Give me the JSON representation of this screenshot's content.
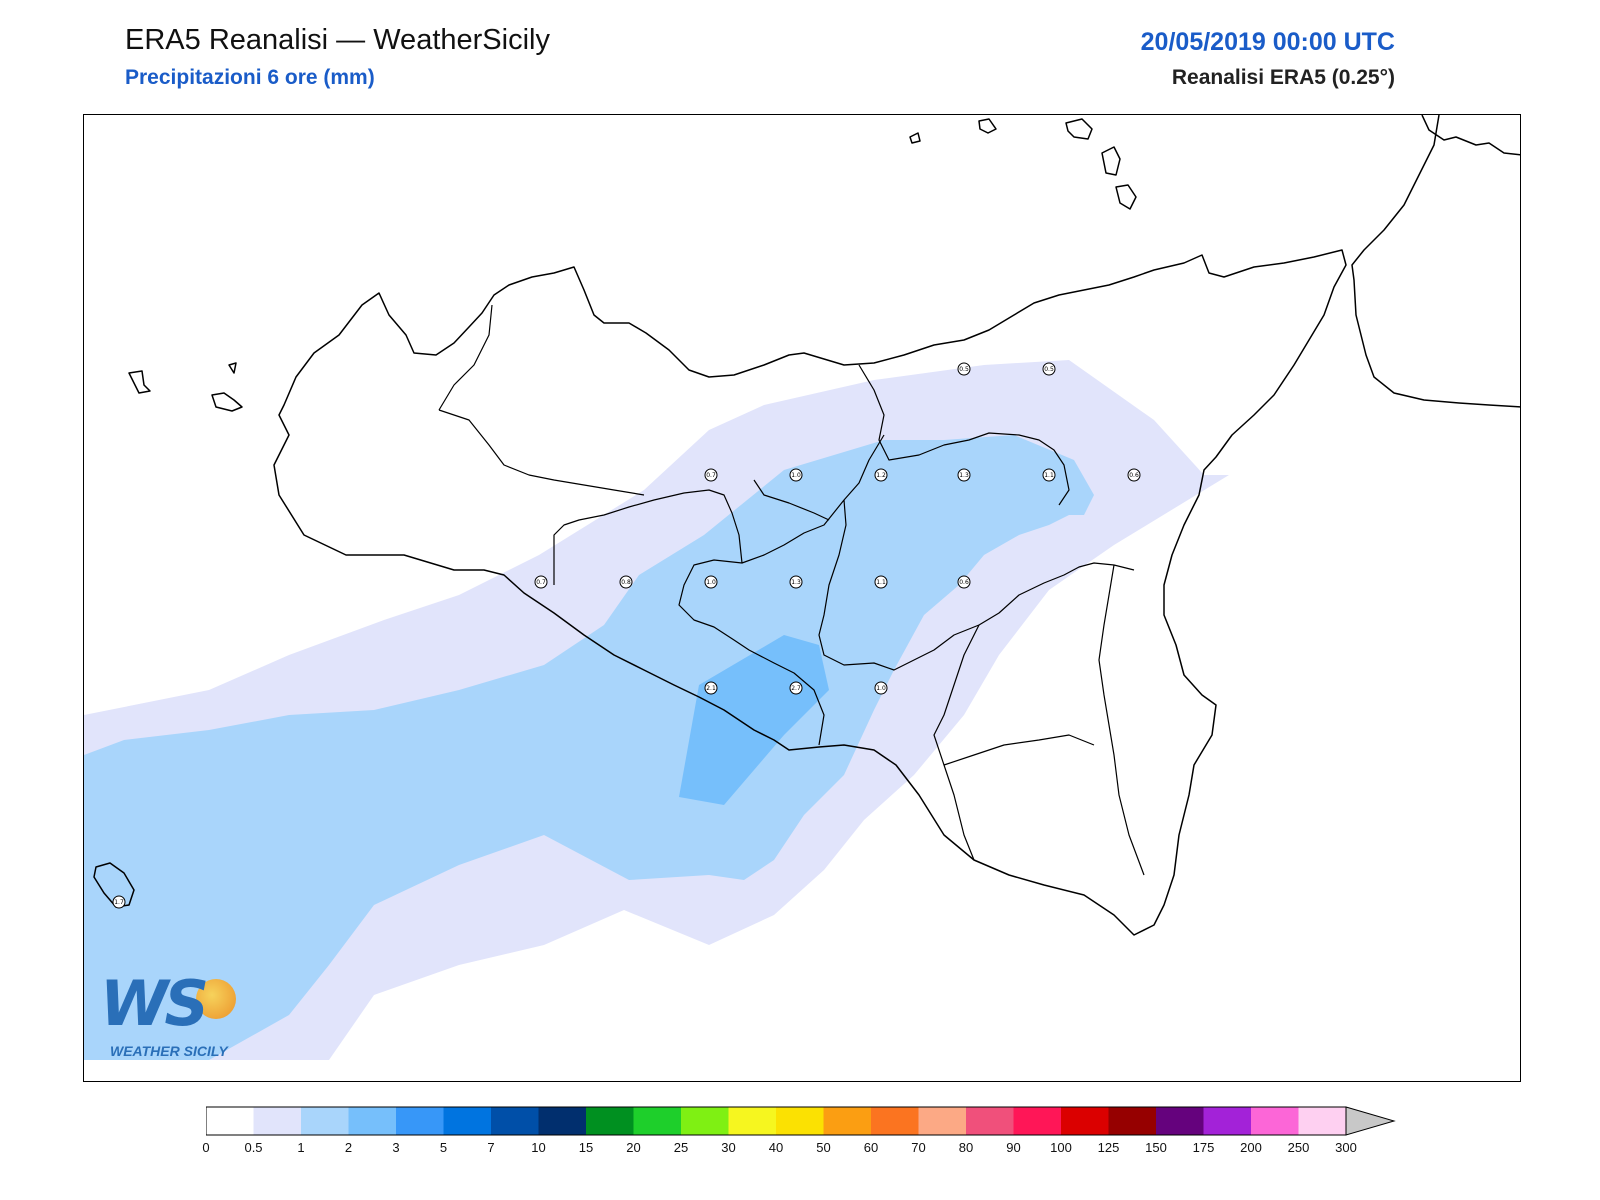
{
  "header": {
    "title": "ERA5 Reanalisi — WeatherSicily",
    "subtitle": "Precipitazioni 6 ore (mm)",
    "datetime": "20/05/2019 00:00 UTC",
    "source": "Reanalisi ERA5 (0.25°)"
  },
  "logo": {
    "mark": "WS",
    "text": "WEATHER SICILY"
  },
  "legend": {
    "levels": [
      "0",
      "0.5",
      "1",
      "2",
      "3",
      "5",
      "7",
      "10",
      "15",
      "20",
      "25",
      "30",
      "40",
      "50",
      "60",
      "70",
      "80",
      "90",
      "100",
      "125",
      "150",
      "175",
      "200",
      "250",
      "300"
    ],
    "colors": [
      "#ffffff",
      "#e1e4fb",
      "#a9d5fb",
      "#76bffb",
      "#3797f8",
      "#0074e0",
      "#004fa8",
      "#012f6e",
      "#009020",
      "#1ecf2b",
      "#7ff013",
      "#f6f61f",
      "#fbe102",
      "#fb9e12",
      "#fb7420",
      "#fca985",
      "#f0507b",
      "#ff1657",
      "#db0000",
      "#960000",
      "#65027d",
      "#a322d8",
      "#fc66d7",
      "#fed0f1"
    ],
    "extend_color": "#c8c8c8"
  },
  "stations": [
    {
      "value": "0.5"
    },
    {
      "value": "0.5"
    },
    {
      "value": "0.7"
    },
    {
      "value": "1.0"
    },
    {
      "value": "1.2"
    },
    {
      "value": "1.3"
    },
    {
      "value": "1.1"
    },
    {
      "value": "0.6"
    },
    {
      "value": "0.7"
    },
    {
      "value": "0.8"
    },
    {
      "value": "1.0"
    },
    {
      "value": "1.3"
    },
    {
      "value": "1.1"
    },
    {
      "value": "0.6"
    },
    {
      "value": "2.1"
    },
    {
      "value": "2.7"
    },
    {
      "value": "1.0"
    },
    {
      "value": "1.7"
    }
  ]
}
